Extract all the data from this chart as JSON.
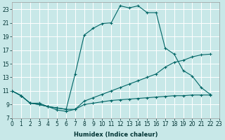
{
  "xlabel": "Humidex (Indice chaleur)",
  "bg_color": "#c8e8e8",
  "grid_color": "#ffffff",
  "line_color": "#006666",
  "xlim": [
    0,
    23
  ],
  "ylim": [
    7,
    24
  ],
  "xticks": [
    0,
    1,
    2,
    3,
    4,
    5,
    6,
    7,
    8,
    9,
    10,
    11,
    12,
    13,
    14,
    15,
    16,
    17,
    18,
    19,
    20,
    21,
    22,
    23
  ],
  "yticks": [
    7,
    9,
    11,
    13,
    15,
    17,
    19,
    21,
    23
  ],
  "curve1_x": [
    0,
    1,
    2,
    3,
    4,
    5,
    6,
    7,
    8,
    9,
    10,
    11,
    12,
    13,
    14,
    15,
    16,
    17,
    18,
    19,
    20,
    21,
    22
  ],
  "curve1_y": [
    11.0,
    10.3,
    9.2,
    9.0,
    8.7,
    8.5,
    8.3,
    13.5,
    19.2,
    20.2,
    20.9,
    21.0,
    23.5,
    23.2,
    23.5,
    22.5,
    22.5,
    17.3,
    16.4,
    14.0,
    13.2,
    11.5,
    10.5
  ],
  "curve2_x": [
    0,
    1,
    2,
    3,
    4,
    5,
    6,
    7,
    8,
    9,
    10,
    11,
    12,
    13,
    14,
    15,
    16,
    17,
    18,
    19,
    20,
    21,
    22
  ],
  "curve2_y": [
    11.0,
    10.3,
    9.2,
    9.2,
    8.7,
    8.2,
    8.0,
    8.3,
    9.5,
    10.0,
    10.5,
    11.0,
    11.5,
    12.0,
    12.5,
    13.0,
    13.5,
    14.5,
    15.2,
    15.5,
    16.0,
    16.3,
    16.4
  ],
  "curve3_x": [
    0,
    1,
    2,
    3,
    4,
    5,
    6,
    7,
    8,
    9,
    10,
    11,
    12,
    13,
    14,
    15,
    16,
    17,
    18,
    19,
    20,
    21,
    22
  ],
  "curve3_y": [
    11.0,
    10.3,
    9.2,
    9.0,
    8.7,
    8.5,
    8.3,
    8.3,
    9.0,
    9.2,
    9.4,
    9.6,
    9.7,
    9.8,
    9.9,
    10.0,
    10.1,
    10.2,
    10.3,
    10.3,
    10.4,
    10.4,
    10.4
  ],
  "xlabel_fontsize": 6.0,
  "tick_fontsize": 5.5
}
